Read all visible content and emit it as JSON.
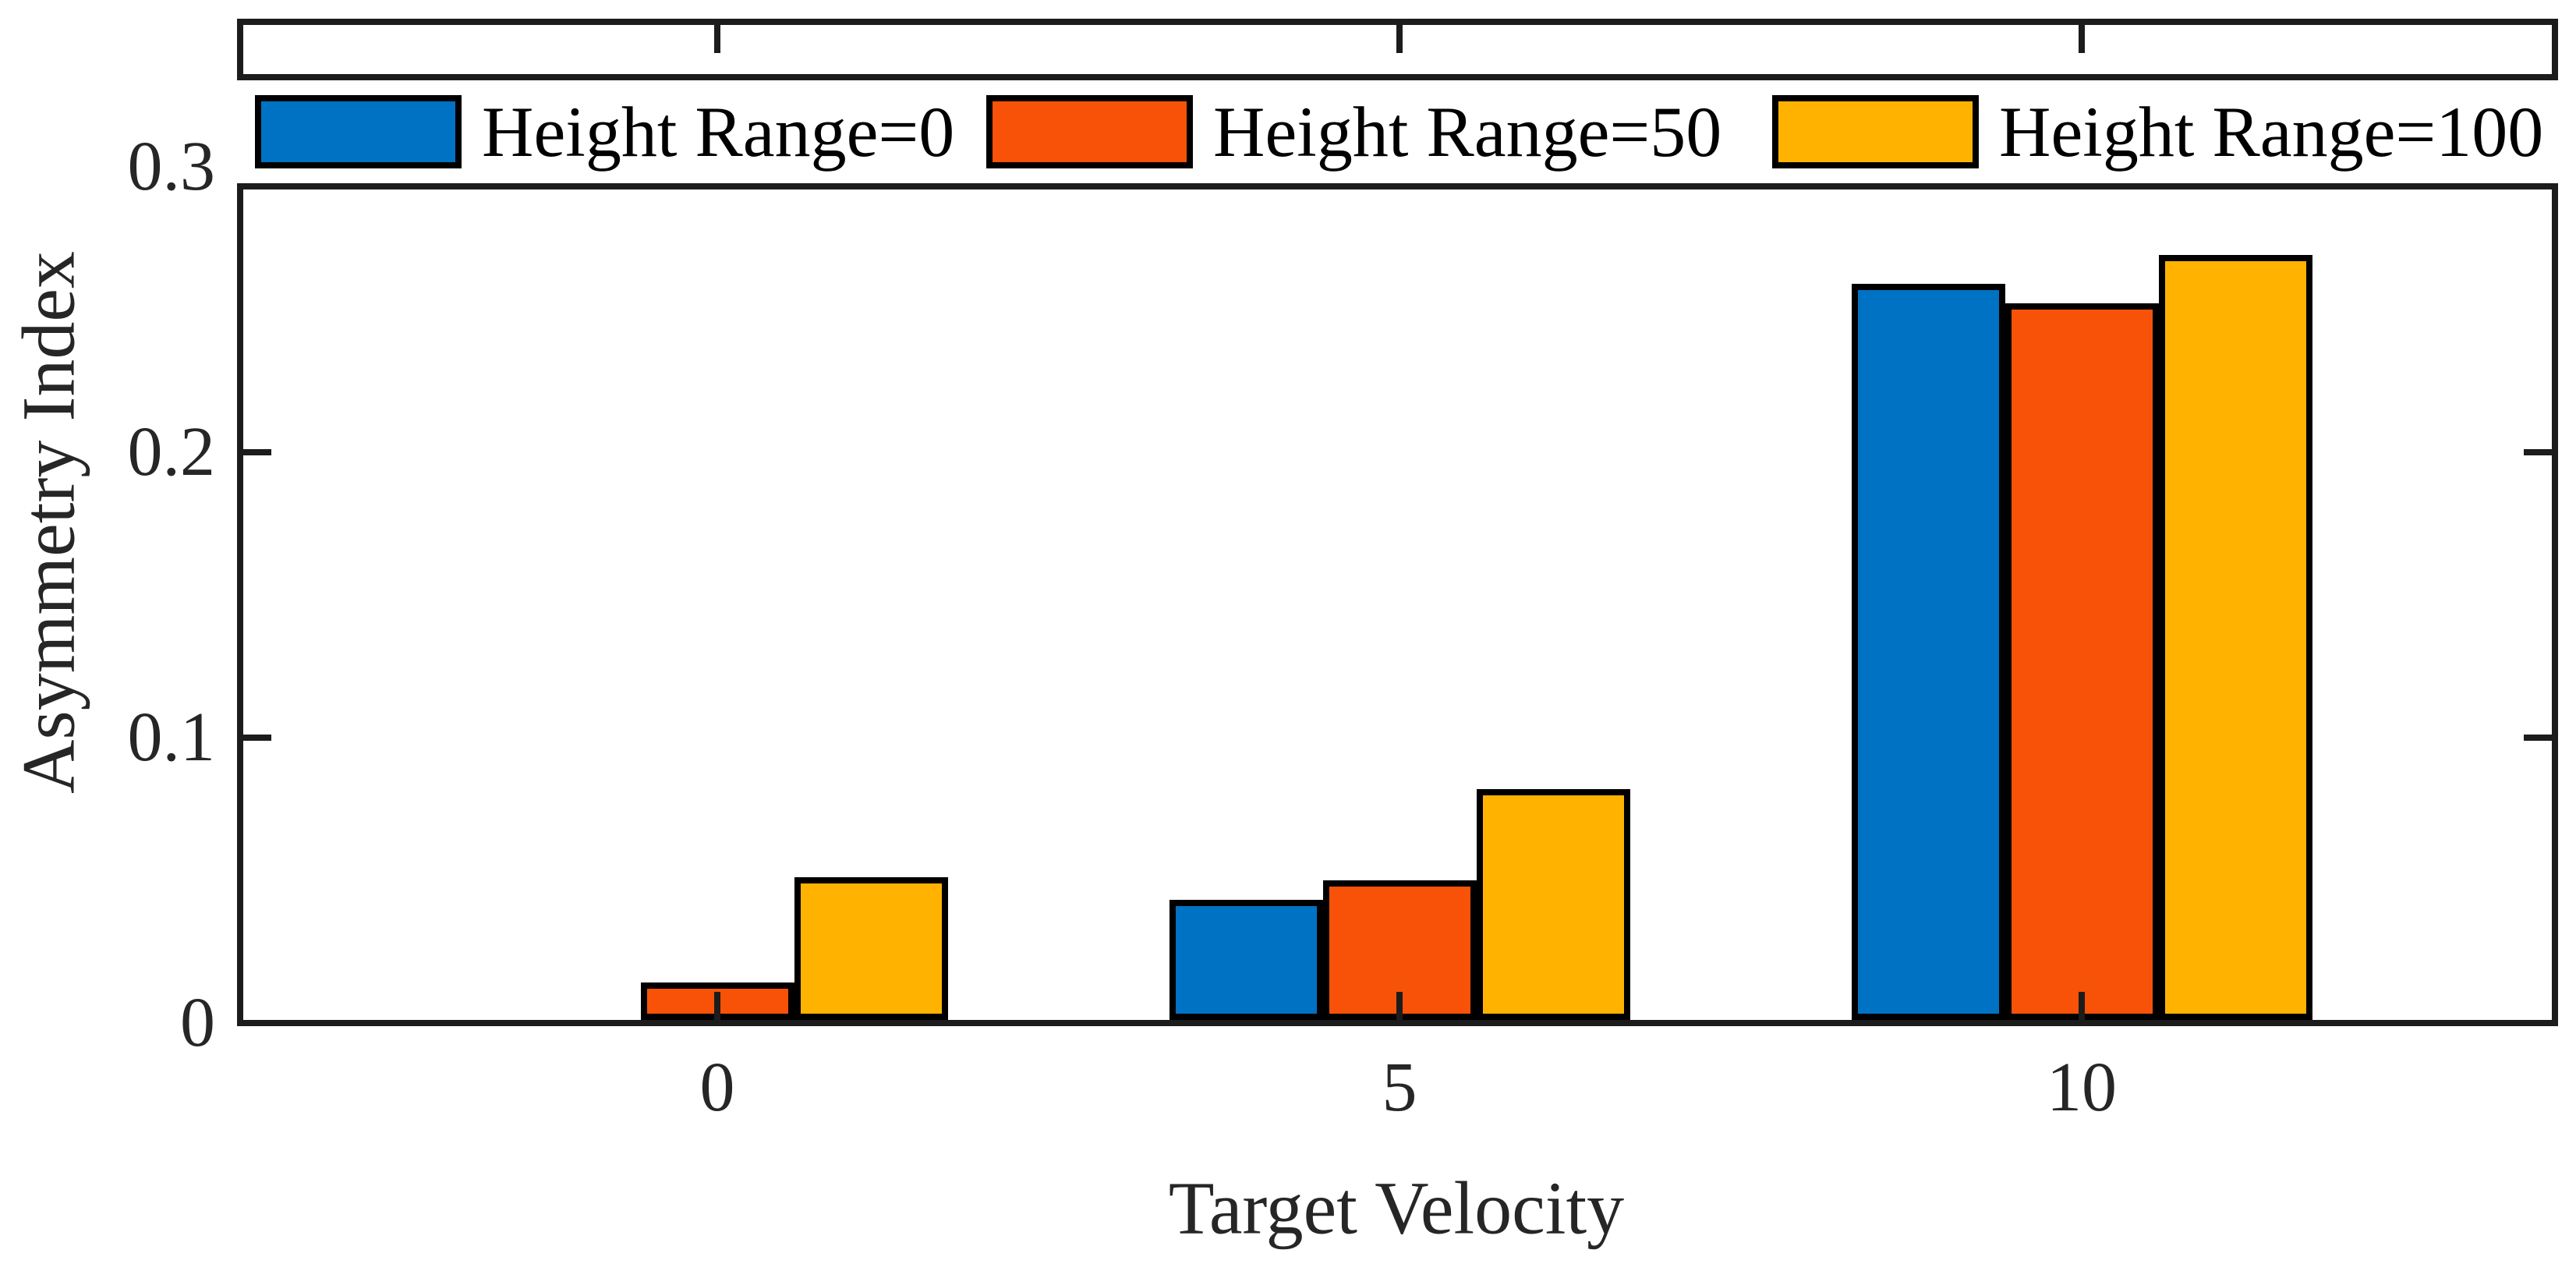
{
  "chart_data": {
    "type": "bar",
    "title": "",
    "xlabel": "Target Velocity",
    "ylabel": "Asymmetry Index",
    "categories": [
      "0",
      "5",
      "10"
    ],
    "x_values": [
      0,
      5,
      10
    ],
    "series": [
      {
        "name": "Height Range=0",
        "color": "#0072C4",
        "values": [
          0,
          0.042,
          0.258
        ]
      },
      {
        "name": "Height Range=50",
        "color": "#F85208",
        "values": [
          0.013,
          0.049,
          0.251
        ]
      },
      {
        "name": "Height Range=100",
        "color": "#FFB300",
        "values": [
          0.05,
          0.081,
          0.268
        ]
      }
    ],
    "ylim": [
      0,
      0.35
    ],
    "yticks": [
      0,
      0.1,
      0.2,
      0.3
    ],
    "ytick_labels": [
      "0",
      "0.1",
      "0.2",
      "0.3"
    ],
    "grid": false,
    "legend": {
      "position": "top",
      "orientation": "horizontal"
    },
    "bar_edge_color": "#000000",
    "axis_color": "#1c1c1c",
    "label_color": "#262626",
    "background": "#ffffff"
  }
}
